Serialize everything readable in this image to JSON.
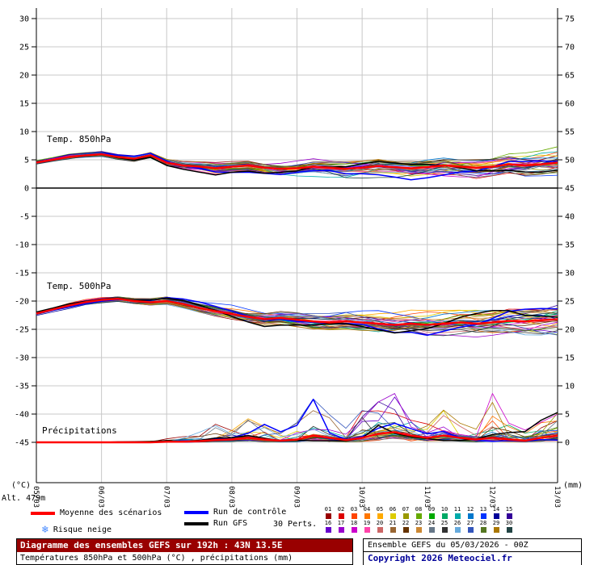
{
  "axes": {
    "left_label": "(°C)",
    "right_label": "(mm)",
    "alt_label": "Alt. 479m",
    "left_ticks": [
      30,
      25,
      20,
      15,
      10,
      5,
      0,
      -5,
      -10,
      -15,
      -20,
      -25,
      -30,
      -35,
      -40,
      -45
    ],
    "right_ticks": [
      75,
      70,
      65,
      60,
      55,
      50,
      45,
      40,
      35,
      30,
      25,
      20,
      15,
      10,
      5,
      0
    ],
    "x_labels": [
      "05/03",
      "06/03",
      "07/03",
      "08/03",
      "09/03",
      "10/03",
      "11/03",
      "12/03",
      "13/03"
    ]
  },
  "panels": {
    "t850_label": "Temp. 850hPa",
    "t500_label": "Temp. 500hPa",
    "precip_label": "Précipitations"
  },
  "legend": {
    "mean": "Moyenne des scénarios",
    "control": "Run de contrôle",
    "gfs": "Run GFS",
    "perts": "30 Perts.",
    "snow": "Risque neige",
    "mean_color": "#ff0000",
    "control_color": "#0000ff",
    "gfs_color": "#000000",
    "pert_numbers": [
      "01",
      "02",
      "03",
      "04",
      "05",
      "06",
      "07",
      "08",
      "09",
      "10",
      "11",
      "12",
      "13",
      "14",
      "15",
      "16",
      "17",
      "18",
      "19",
      "20",
      "21",
      "22",
      "23",
      "24",
      "25",
      "26",
      "27",
      "28",
      "29",
      "30"
    ],
    "pert_colors": [
      "#990000",
      "#dd0000",
      "#ff4400",
      "#ff7700",
      "#ffaa00",
      "#ddcc00",
      "#999900",
      "#66aa00",
      "#00aa00",
      "#00aa66",
      "#00aaaa",
      "#0077cc",
      "#0033ff",
      "#000099",
      "#330099",
      "#6600cc",
      "#9900cc",
      "#cc00cc",
      "#ff44aa",
      "#cc6666",
      "#996633",
      "#663300",
      "#cc8833",
      "#667788",
      "#333333",
      "#66aadd",
      "#3355bb",
      "#557722",
      "#aa7700",
      "#224444"
    ]
  },
  "footer": {
    "title": "Diagramme des ensembles GEFS sur 192h : 43N 13.5E",
    "subtitle": "Températures 850hPa et 500hPa (°C) , précipitations (mm)",
    "run_info": "Ensemble GEFS du 05/03/2026 - 00Z",
    "copyright": "Copyright 2026 Meteociel.fr"
  },
  "chart_data": {
    "type": "line",
    "description": "GEFS ensemble plume diagram: 850hPa and 500hPa temperature (°C, left axis) and precipitation (mm, right axis) for 43N 13.5E over 192h, 30 perturbation members + control run + GFS run + ensemble mean",
    "n_members": 30,
    "left_axis_range": [
      -45,
      30
    ],
    "right_axis_range": [
      0,
      75
    ],
    "x_hours": [
      0,
      6,
      12,
      18,
      24,
      30,
      36,
      42,
      48,
      54,
      60,
      66,
      72,
      78,
      84,
      90,
      96,
      102,
      108,
      114,
      120,
      126,
      132,
      138,
      144,
      150,
      156,
      162,
      168,
      174,
      180,
      186,
      192
    ],
    "x_day_labels": [
      "05/03",
      "06/03",
      "07/03",
      "08/03",
      "09/03",
      "10/03",
      "11/03",
      "12/03",
      "13/03"
    ],
    "t850_mean": [
      4.5,
      5.0,
      5.5,
      5.8,
      6.0,
      5.5,
      5.2,
      5.8,
      4.5,
      4.0,
      3.8,
      3.5,
      3.8,
      4.0,
      3.6,
      3.4,
      3.5,
      3.8,
      3.6,
      3.4,
      3.6,
      3.9,
      3.7,
      3.5,
      3.7,
      4.0,
      3.8,
      3.6,
      3.8,
      4.2,
      4.0,
      4.2,
      4.5
    ],
    "t850_spread": [
      0.3,
      0.3,
      0.4,
      0.4,
      0.5,
      0.5,
      0.6,
      0.6,
      0.7,
      0.8,
      0.9,
      1.0,
      1.0,
      1.1,
      1.1,
      1.2,
      1.2,
      1.3,
      1.3,
      1.4,
      1.4,
      1.5,
      1.5,
      1.6,
      1.6,
      1.7,
      1.7,
      1.8,
      1.8,
      1.9,
      2.0,
      2.1,
      2.2
    ],
    "t500_mean": [
      -22.2,
      -21.5,
      -20.8,
      -20.2,
      -19.8,
      -19.6,
      -20.0,
      -20.2,
      -20.0,
      -20.5,
      -21.2,
      -21.8,
      -22.3,
      -22.8,
      -23.2,
      -23.0,
      -23.3,
      -23.6,
      -23.8,
      -23.6,
      -23.8,
      -24.0,
      -24.2,
      -24.0,
      -24.2,
      -24.0,
      -23.8,
      -24.0,
      -23.8,
      -23.5,
      -23.6,
      -23.4,
      -23.2
    ],
    "t500_spread": [
      0.3,
      0.3,
      0.4,
      0.4,
      0.5,
      0.5,
      0.6,
      0.7,
      0.8,
      0.9,
      1.0,
      1.1,
      1.2,
      1.2,
      1.3,
      1.3,
      1.4,
      1.5,
      1.5,
      1.6,
      1.7,
      1.8,
      1.8,
      1.9,
      2.0,
      2.0,
      2.1,
      2.2,
      2.2,
      2.3,
      2.4,
      2.5,
      2.6
    ],
    "precip_mean_mm": [
      0,
      0,
      0,
      0,
      0,
      0,
      0,
      0,
      0.1,
      0.1,
      0.2,
      0.4,
      0.5,
      0.8,
      0.5,
      0.3,
      0.5,
      1.2,
      0.8,
      0.4,
      0.8,
      1.5,
      1.8,
      1.2,
      0.8,
      1.2,
      0.8,
      0.5,
      0.8,
      0.5,
      0.3,
      0.8,
      1.2
    ],
    "precip_max_mm": [
      0,
      0,
      0,
      0,
      0,
      0.1,
      0.1,
      0.2,
      0.5,
      0.8,
      1.5,
      2.5,
      2.0,
      3.5,
      2.5,
      1.5,
      3.0,
      6.5,
      4.0,
      2.0,
      5.0,
      7.0,
      8.0,
      4.0,
      3.0,
      5.5,
      3.0,
      2.5,
      8.0,
      3.0,
      2.0,
      3.5,
      4.5
    ]
  }
}
